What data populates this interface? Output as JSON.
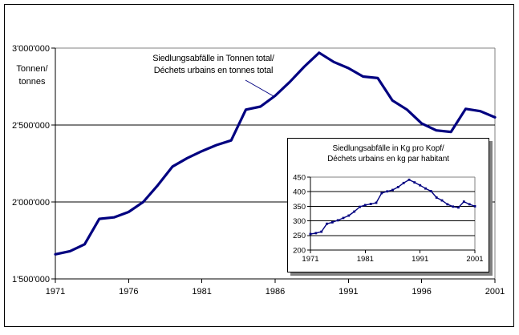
{
  "chart_data": [
    {
      "id": "main-waste-total",
      "type": "line",
      "annotation_line1": "Siedlungsabfälle in Tonnen total/",
      "annotation_line2": "Déchets urbains en tonnes total",
      "ylabel_line1": "Tonnen/",
      "ylabel_line2": "tonnes",
      "x": [
        1971,
        1972,
        1973,
        1974,
        1975,
        1976,
        1977,
        1978,
        1979,
        1980,
        1981,
        1982,
        1983,
        1984,
        1985,
        1986,
        1987,
        1988,
        1989,
        1990,
        1991,
        1992,
        1993,
        1994,
        1995,
        1996,
        1997,
        1998,
        1999,
        2000,
        2001
      ],
      "values": [
        1660000,
        1680000,
        1725000,
        1890000,
        1900000,
        1935000,
        2000000,
        2110000,
        2230000,
        2285000,
        2330000,
        2370000,
        2400000,
        2600000,
        2620000,
        2690000,
        2780000,
        2880000,
        2970000,
        2910000,
        2870000,
        2815000,
        2805000,
        2660000,
        2600000,
        2510000,
        2465000,
        2455000,
        2605000,
        2590000,
        2550000
      ],
      "ylim": [
        1500000,
        3000000
      ],
      "yticks": [
        3000000,
        2500000,
        2000000,
        1500000
      ],
      "ytick_labels": [
        "3'000'000",
        "2'500'000",
        "2'000'000",
        "1'500'000"
      ],
      "xticks": [
        1971,
        1976,
        1981,
        1986,
        1991,
        1996,
        2001
      ],
      "xtick_labels": [
        "1971",
        "1976",
        "1981",
        "1986",
        "1991",
        "1996",
        "2001"
      ],
      "grid": true,
      "legend": "none",
      "markers": false,
      "line_color": "#000080"
    },
    {
      "id": "inset-waste-per-capita",
      "type": "line",
      "title_line1": "Siedlungsabfälle in Kg pro Kopf/",
      "title_line2": "Déchets urbains en kg par habitant",
      "x": [
        1971,
        1972,
        1973,
        1974,
        1975,
        1976,
        1977,
        1978,
        1979,
        1980,
        1981,
        1982,
        1983,
        1984,
        1985,
        1986,
        1987,
        1988,
        1989,
        1990,
        1991,
        1992,
        1993,
        1994,
        1995,
        1996,
        1997,
        1998,
        1999,
        2000,
        2001
      ],
      "values": [
        255,
        258,
        263,
        290,
        295,
        302,
        310,
        318,
        332,
        348,
        354,
        358,
        362,
        395,
        401,
        406,
        416,
        430,
        441,
        432,
        422,
        411,
        402,
        380,
        370,
        357,
        349,
        346,
        366,
        357,
        350
      ],
      "ylim": [
        200,
        450
      ],
      "yticks": [
        450,
        400,
        350,
        300,
        250,
        200
      ],
      "ytick_labels": [
        "450",
        "400",
        "350",
        "300",
        "250",
        "200"
      ],
      "xticks": [
        1971,
        1981,
        1991,
        2001
      ],
      "xtick_labels": [
        "1971",
        "1981",
        "1991",
        "2001"
      ],
      "grid": true,
      "legend": "none",
      "markers": true,
      "line_color": "#000080"
    }
  ],
  "colors": {
    "series": "#000080",
    "gridline": "#000000",
    "plot_border": "#808080",
    "shadow": "#808080",
    "background": "#ffffff"
  }
}
